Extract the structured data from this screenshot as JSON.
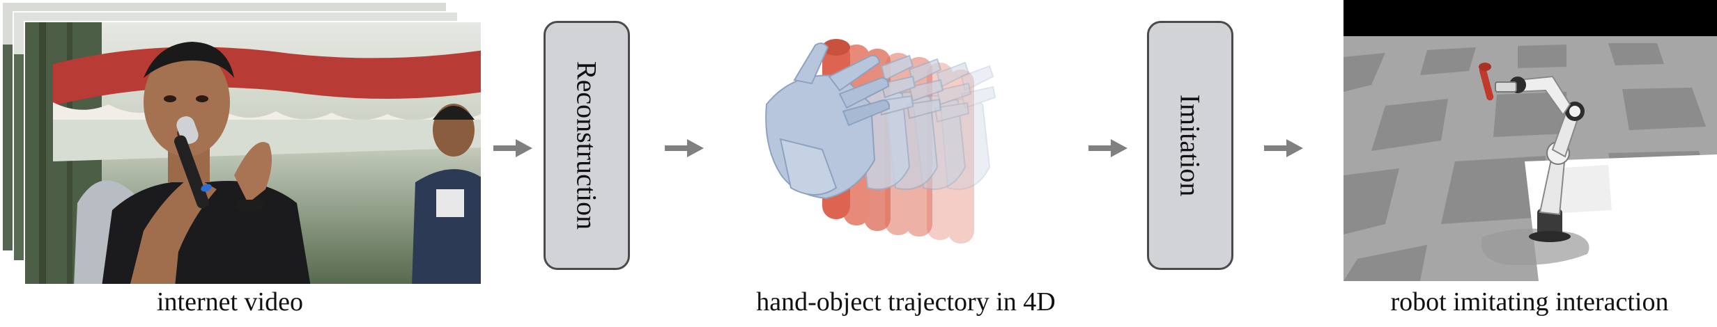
{
  "stages": [
    {
      "caption": "internet video"
    },
    {
      "caption": "hand-object trajectory in 4D"
    },
    {
      "caption": "robot imitating interaction"
    }
  ],
  "steps": [
    {
      "label": "Reconstruction"
    },
    {
      "label": "Imitation"
    }
  ],
  "colors": {
    "arrow": "#808080",
    "box_fill": "#d2d3d7",
    "box_border": "#4a4a4a",
    "hand": "#b7c6dc",
    "object": "#e0735f",
    "sky": "#000000",
    "floor_light": "#b4b4b4",
    "floor_dark": "#8e8e8e"
  }
}
